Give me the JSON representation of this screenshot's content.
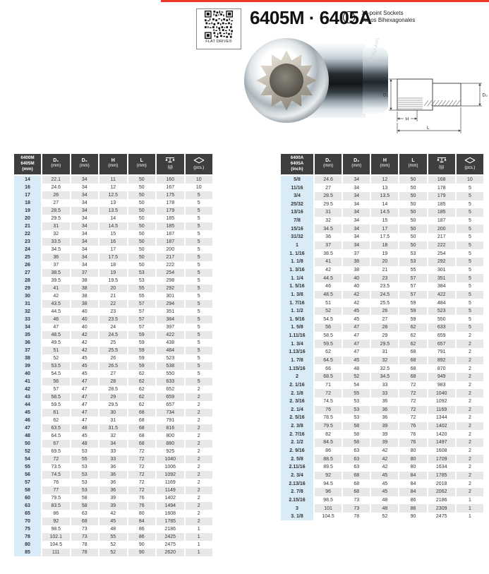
{
  "page": {
    "accent_color": "#e8392b",
    "qr_label": "FLAT DRIVE®",
    "title": "6405M · 6405A",
    "subtitle_en": "12-point Sockets",
    "subtitle_es": "Vasos Bihexagonales",
    "product_marking": "33 Ko-ken"
  },
  "diagram": {
    "d1": "D₁",
    "d2": "D₂",
    "h": "H",
    "l": "L"
  },
  "tables": {
    "metric": {
      "id_lines": [
        "6400M",
        "6405M",
        "(mm)"
      ],
      "columns": [
        {
          "label": "D₁",
          "unit": "(mm)"
        },
        {
          "label": "D₂",
          "unit": "(mm)"
        },
        {
          "label": "H",
          "unit": "(mm)"
        },
        {
          "label": "L",
          "unit": "(mm)"
        },
        {
          "icon": "scale-icon",
          "unit": "(g)"
        },
        {
          "icon": "package-icon",
          "unit": "(pcs.)"
        }
      ],
      "rows": [
        [
          "14",
          "22.1",
          "34",
          "11",
          "50",
          "160",
          "10"
        ],
        [
          "16",
          "24.6",
          "34",
          "12",
          "50",
          "167",
          "10"
        ],
        [
          "17",
          "26",
          "34",
          "12.5",
          "50",
          "175",
          "5"
        ],
        [
          "18",
          "27",
          "34",
          "13",
          "50",
          "178",
          "5"
        ],
        [
          "19",
          "28.5",
          "34",
          "13.5",
          "50",
          "179",
          "5"
        ],
        [
          "20",
          "29.5",
          "34",
          "14",
          "50",
          "185",
          "5"
        ],
        [
          "21",
          "31",
          "34",
          "14.5",
          "50",
          "185",
          "5"
        ],
        [
          "22",
          "32",
          "34",
          "15",
          "50",
          "187",
          "5"
        ],
        [
          "23",
          "33.5",
          "34",
          "16",
          "50",
          "187",
          "5"
        ],
        [
          "24",
          "34.5",
          "34",
          "17",
          "50",
          "200",
          "5"
        ],
        [
          "25",
          "36",
          "34",
          "17.5",
          "50",
          "217",
          "5"
        ],
        [
          "26",
          "37",
          "34",
          "18",
          "50",
          "222",
          "5"
        ],
        [
          "27",
          "38.5",
          "37",
          "19",
          "53",
          "254",
          "5"
        ],
        [
          "28",
          "39.5",
          "38",
          "19.5",
          "53",
          "298",
          "5"
        ],
        [
          "29",
          "41",
          "38",
          "20",
          "55",
          "292",
          "5"
        ],
        [
          "30",
          "42",
          "38",
          "21",
          "55",
          "301",
          "5"
        ],
        [
          "31",
          "43.5",
          "38",
          "22",
          "57",
          "294",
          "5"
        ],
        [
          "32",
          "44.5",
          "40",
          "23",
          "57",
          "351",
          "5"
        ],
        [
          "33",
          "46",
          "40",
          "23.5",
          "57",
          "384",
          "5"
        ],
        [
          "34",
          "47",
          "40",
          "24",
          "57",
          "397",
          "5"
        ],
        [
          "35",
          "48.5",
          "42",
          "24.5",
          "59",
          "422",
          "5"
        ],
        [
          "36",
          "49.5",
          "42",
          "25",
          "59",
          "438",
          "5"
        ],
        [
          "37",
          "51",
          "42",
          "25.5",
          "59",
          "484",
          "5"
        ],
        [
          "38",
          "52",
          "45",
          "26",
          "59",
          "523",
          "5"
        ],
        [
          "39",
          "53.5",
          "45",
          "26.5",
          "59",
          "538",
          "5"
        ],
        [
          "40",
          "54.5",
          "45",
          "27",
          "62",
          "550",
          "5"
        ],
        [
          "41",
          "56",
          "47",
          "28",
          "62",
          "633",
          "5"
        ],
        [
          "42",
          "57",
          "47",
          "28.5",
          "62",
          "652",
          "2"
        ],
        [
          "43",
          "58.5",
          "47",
          "29",
          "62",
          "659",
          "2"
        ],
        [
          "44",
          "59.5",
          "47",
          "29.5",
          "62",
          "657",
          "2"
        ],
        [
          "45",
          "61",
          "47",
          "30",
          "68",
          "734",
          "2"
        ],
        [
          "46",
          "62",
          "47",
          "31",
          "68",
          "791",
          "2"
        ],
        [
          "47",
          "63.5",
          "48",
          "31.5",
          "68",
          "816",
          "2"
        ],
        [
          "48",
          "64.5",
          "45",
          "32",
          "68",
          "800",
          "2"
        ],
        [
          "50",
          "67",
          "48",
          "34",
          "68",
          "880",
          "2"
        ],
        [
          "52",
          "69.5",
          "53",
          "33",
          "72",
          "925",
          "2"
        ],
        [
          "54",
          "72",
          "55",
          "33",
          "72",
          "1040",
          "2"
        ],
        [
          "55",
          "73.5",
          "53",
          "36",
          "72",
          "1006",
          "2"
        ],
        [
          "56",
          "74.5",
          "53",
          "36",
          "72",
          "1092",
          "2"
        ],
        [
          "57",
          "76",
          "53",
          "36",
          "72",
          "1169",
          "2"
        ],
        [
          "58",
          "77",
          "53",
          "36",
          "72",
          "1149",
          "2"
        ],
        [
          "60",
          "79.5",
          "58",
          "39",
          "76",
          "1402",
          "2"
        ],
        [
          "63",
          "83.5",
          "58",
          "39",
          "76",
          "1494",
          "2"
        ],
        [
          "65",
          "86",
          "63",
          "42",
          "80",
          "1608",
          "2"
        ],
        [
          "70",
          "92",
          "68",
          "45",
          "84",
          "1785",
          "2"
        ],
        [
          "75",
          "98.5",
          "73",
          "48",
          "86",
          "2186",
          "1"
        ],
        [
          "78",
          "102.1",
          "73",
          "55",
          "86",
          "2425",
          "1"
        ],
        [
          "80",
          "104.5",
          "78",
          "52",
          "90",
          "2475",
          "1"
        ],
        [
          "85",
          "111",
          "78",
          "52",
          "90",
          "2620",
          "1"
        ]
      ]
    },
    "inch": {
      "id_lines": [
        "6400A",
        "6405A",
        "(inch)"
      ],
      "columns": [
        {
          "label": "D₁",
          "unit": "(mm)"
        },
        {
          "label": "D₂",
          "unit": "(mm)"
        },
        {
          "label": "H",
          "unit": "(mm)"
        },
        {
          "label": "L",
          "unit": "(mm)"
        },
        {
          "icon": "scale-icon",
          "unit": "(g)"
        },
        {
          "icon": "package-icon",
          "unit": "(pcs.)"
        }
      ],
      "rows": [
        [
          "5/8",
          "24.6",
          "34",
          "12",
          "50",
          "168",
          "10"
        ],
        [
          "11/16",
          "27",
          "34",
          "13",
          "50",
          "178",
          "5"
        ],
        [
          "3/4",
          "28.5",
          "34",
          "13.5",
          "50",
          "179",
          "5"
        ],
        [
          "25/32",
          "29.5",
          "34",
          "14",
          "50",
          "185",
          "5"
        ],
        [
          "13/16",
          "31",
          "34",
          "14.5",
          "50",
          "185",
          "5"
        ],
        [
          "7/8",
          "32",
          "34",
          "15",
          "50",
          "187",
          "5"
        ],
        [
          "15/16",
          "34.5",
          "34",
          "17",
          "50",
          "200",
          "5"
        ],
        [
          "31/32",
          "36",
          "34",
          "17.5",
          "50",
          "217",
          "5"
        ],
        [
          "1",
          "37",
          "34",
          "18",
          "50",
          "222",
          "5"
        ],
        [
          "1. 1/16",
          "38.5",
          "37",
          "19",
          "53",
          "254",
          "5"
        ],
        [
          "1. 1/8",
          "41",
          "38",
          "20",
          "53",
          "292",
          "5"
        ],
        [
          "1. 3/16",
          "42",
          "38",
          "21",
          "55",
          "301",
          "5"
        ],
        [
          "1. 1/4",
          "44.5",
          "40",
          "23",
          "57",
          "351",
          "5"
        ],
        [
          "1. 5/16",
          "46",
          "40",
          "23.5",
          "57",
          "384",
          "5"
        ],
        [
          "1. 3/8",
          "48.5",
          "42",
          "24.5",
          "57",
          "422",
          "5"
        ],
        [
          "1. 7/16",
          "51",
          "42",
          "25.5",
          "59",
          "484",
          "5"
        ],
        [
          "1. 1/2",
          "52",
          "45",
          "26",
          "59",
          "523",
          "5"
        ],
        [
          "1. 9/16",
          "54.5",
          "45",
          "27",
          "59",
          "550",
          "5"
        ],
        [
          "1. 5/8",
          "56",
          "47",
          "28",
          "62",
          "633",
          "5"
        ],
        [
          "1.11/16",
          "58.5",
          "47",
          "29",
          "62",
          "659",
          "2"
        ],
        [
          "1. 3/4",
          "59.5",
          "47",
          "29.5",
          "62",
          "657",
          "2"
        ],
        [
          "1.13/16",
          "62",
          "47",
          "31",
          "68",
          "791",
          "2"
        ],
        [
          "1. 7/8",
          "64.5",
          "45",
          "32",
          "68",
          "892",
          "2"
        ],
        [
          "1.15/16",
          "66",
          "48",
          "32.5",
          "68",
          "870",
          "2"
        ],
        [
          "2",
          "68.5",
          "52",
          "34.5",
          "68",
          "949",
          "2"
        ],
        [
          "2. 1/16",
          "71",
          "54",
          "33",
          "72",
          "983",
          "2"
        ],
        [
          "2. 1/8",
          "72",
          "55",
          "33",
          "72",
          "1040",
          "2"
        ],
        [
          "2. 3/16",
          "74.5",
          "53",
          "36",
          "72",
          "1092",
          "2"
        ],
        [
          "2. 1/4",
          "76",
          "53",
          "36",
          "72",
          "1169",
          "2"
        ],
        [
          "2. 5/16",
          "78.5",
          "53",
          "36",
          "72",
          "1344",
          "2"
        ],
        [
          "2. 3/8",
          "79.5",
          "58",
          "39",
          "76",
          "1402",
          "2"
        ],
        [
          "2. 7/16",
          "82",
          "58",
          "39",
          "76",
          "1420",
          "2"
        ],
        [
          "2. 1/2",
          "84.5",
          "58",
          "39",
          "76",
          "1497",
          "2"
        ],
        [
          "2. 9/16",
          "86",
          "63",
          "42",
          "80",
          "1608",
          "2"
        ],
        [
          "2. 5/8",
          "88.5",
          "63",
          "42",
          "80",
          "1709",
          "2"
        ],
        [
          "2.11/16",
          "89.5",
          "63",
          "42",
          "80",
          "1634",
          "2"
        ],
        [
          "2. 3/4",
          "92",
          "68",
          "45",
          "84",
          "1785",
          "2"
        ],
        [
          "2.13/16",
          "94.5",
          "68",
          "45",
          "84",
          "2018",
          "2"
        ],
        [
          "2. 7/8",
          "96",
          "68",
          "45",
          "84",
          "2062",
          "2"
        ],
        [
          "2.15/16",
          "98.5",
          "73",
          "48",
          "86",
          "2186",
          "1"
        ],
        [
          "3",
          "101",
          "73",
          "48",
          "86",
          "2309",
          "1"
        ],
        [
          "3. 1/8",
          "104.5",
          "78",
          "52",
          "90",
          "2475",
          "1"
        ]
      ]
    }
  }
}
